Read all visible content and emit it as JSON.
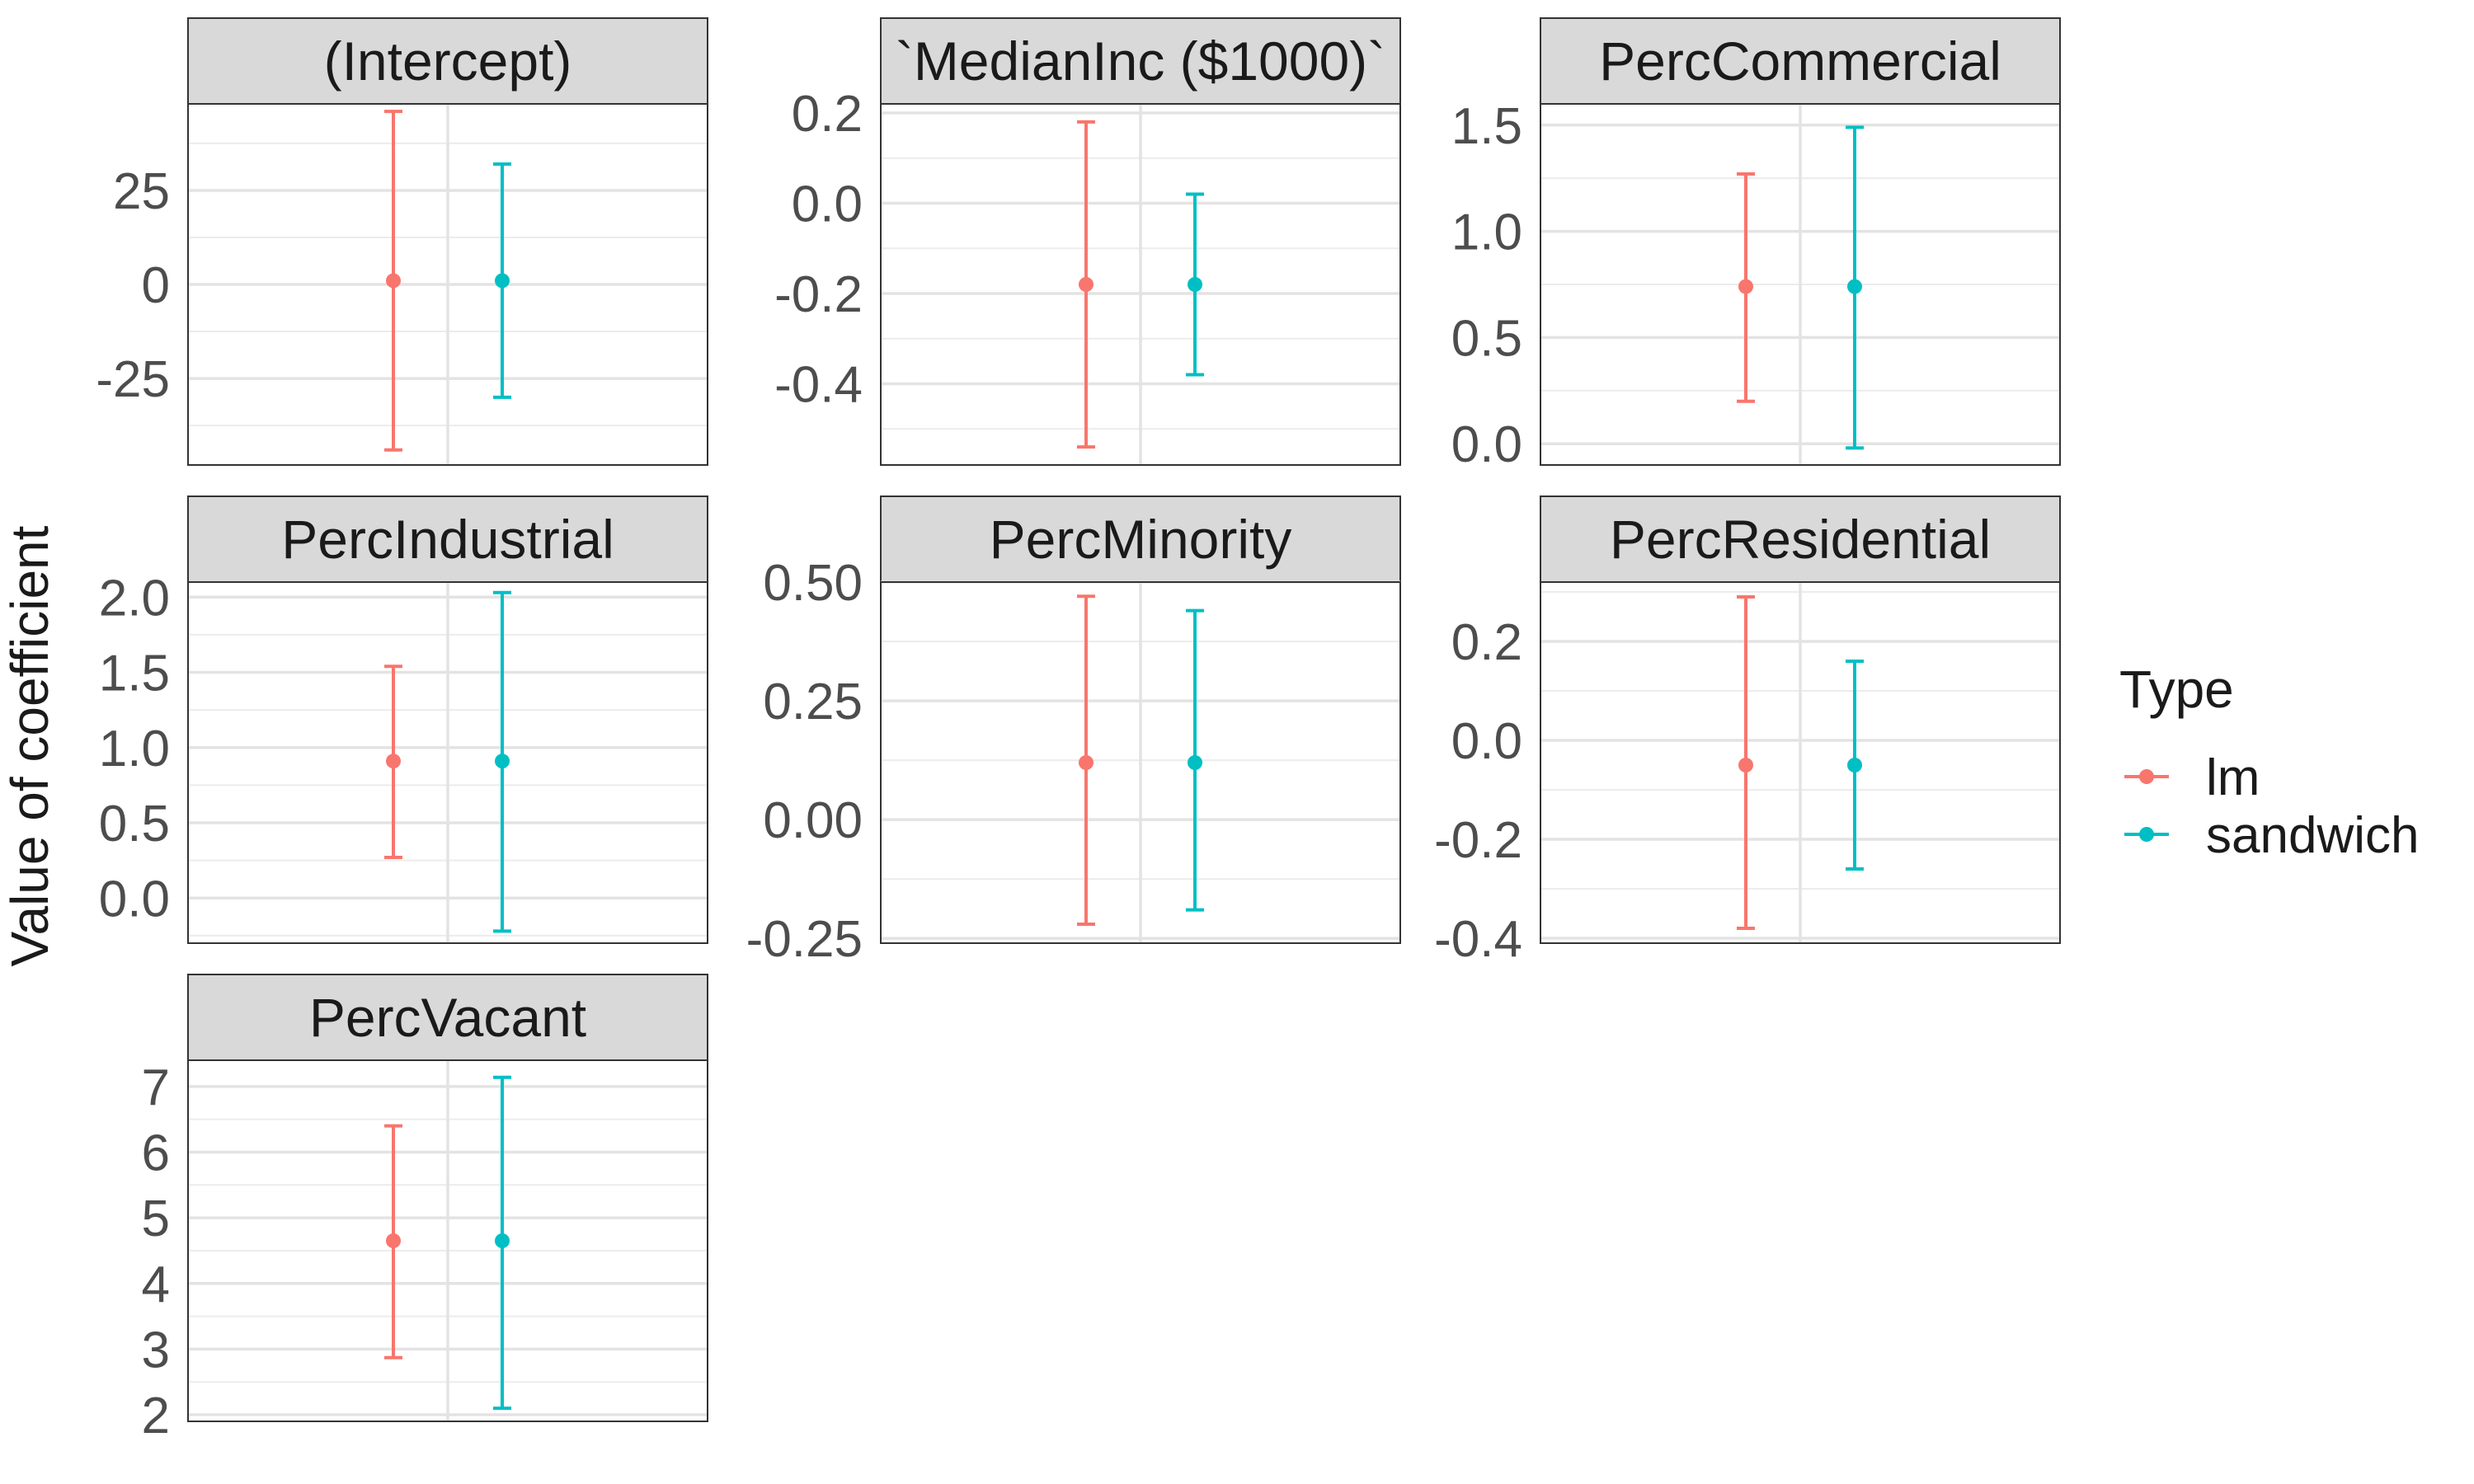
{
  "chart_data": {
    "type": "errorbar",
    "ylabel": "Value of coefficient",
    "legend": {
      "title": "Type",
      "placement": "right",
      "entries": [
        {
          "name": "lm",
          "color": "#F8766D"
        },
        {
          "name": "sandwich",
          "color": "#00BFC4"
        }
      ]
    },
    "grid": true,
    "facets": [
      {
        "title": "(Intercept)",
        "ylim": [
          -48,
          48
        ],
        "yticks": [
          -25,
          0,
          25
        ],
        "ytick_labels": [
          "-25",
          "0",
          "25"
        ],
        "series": [
          {
            "name": "lm",
            "estimate": 1,
            "low": -44,
            "high": 46
          },
          {
            "name": "sandwich",
            "estimate": 1,
            "low": -30,
            "high": 32
          }
        ]
      },
      {
        "title": "`MedianInc ($1000)`",
        "ylim": [
          -0.58,
          0.22
        ],
        "yticks": [
          -0.4,
          -0.2,
          0.0,
          0.2
        ],
        "ytick_labels": [
          "-0.4",
          "-0.2",
          "0.0",
          "0.2"
        ],
        "series": [
          {
            "name": "lm",
            "estimate": -0.18,
            "low": -0.54,
            "high": 0.18
          },
          {
            "name": "sandwich",
            "estimate": -0.18,
            "low": -0.38,
            "high": 0.02
          }
        ]
      },
      {
        "title": "PercCommercial",
        "ylim": [
          -0.1,
          1.6
        ],
        "yticks": [
          0.0,
          0.5,
          1.0,
          1.5
        ],
        "ytick_labels": [
          "0.0",
          "0.5",
          "1.0",
          "1.5"
        ],
        "series": [
          {
            "name": "lm",
            "estimate": 0.74,
            "low": 0.2,
            "high": 1.27
          },
          {
            "name": "sandwich",
            "estimate": 0.74,
            "low": -0.02,
            "high": 1.49
          }
        ]
      },
      {
        "title": "PercIndustrial",
        "ylim": [
          -0.3,
          2.1
        ],
        "yticks": [
          0.0,
          0.5,
          1.0,
          1.5,
          2.0
        ],
        "ytick_labels": [
          "0.0",
          "0.5",
          "1.0",
          "1.5",
          "2.0"
        ],
        "series": [
          {
            "name": "lm",
            "estimate": 0.91,
            "low": 0.27,
            "high": 1.54
          },
          {
            "name": "sandwich",
            "estimate": 0.91,
            "low": -0.22,
            "high": 2.03
          }
        ]
      },
      {
        "title": "PercMinority",
        "ylim": [
          -0.26,
          0.5
        ],
        "yticks": [
          -0.25,
          0.0,
          0.25,
          0.5
        ],
        "ytick_labels": [
          "-0.25",
          "0.00",
          "0.25",
          "0.50"
        ],
        "series": [
          {
            "name": "lm",
            "estimate": 0.12,
            "low": -0.22,
            "high": 0.47
          },
          {
            "name": "sandwich",
            "estimate": 0.12,
            "low": -0.19,
            "high": 0.44
          }
        ]
      },
      {
        "title": "PercResidential",
        "ylim": [
          -0.41,
          0.32
        ],
        "yticks": [
          -0.4,
          -0.2,
          0.0,
          0.2
        ],
        "ytick_labels": [
          "-0.4",
          "-0.2",
          "0.0",
          "0.2"
        ],
        "series": [
          {
            "name": "lm",
            "estimate": -0.05,
            "low": -0.38,
            "high": 0.29
          },
          {
            "name": "sandwich",
            "estimate": -0.05,
            "low": -0.26,
            "high": 0.16
          }
        ]
      },
      {
        "title": "PercVacant",
        "ylim": [
          1.9,
          7.4
        ],
        "yticks": [
          2,
          3,
          4,
          5,
          6,
          7
        ],
        "ytick_labels": [
          "2",
          "3",
          "4",
          "5",
          "6",
          "7"
        ],
        "series": [
          {
            "name": "lm",
            "estimate": 4.65,
            "low": 2.87,
            "high": 6.4
          },
          {
            "name": "sandwich",
            "estimate": 4.65,
            "low": 2.1,
            "high": 7.14
          }
        ]
      }
    ]
  }
}
